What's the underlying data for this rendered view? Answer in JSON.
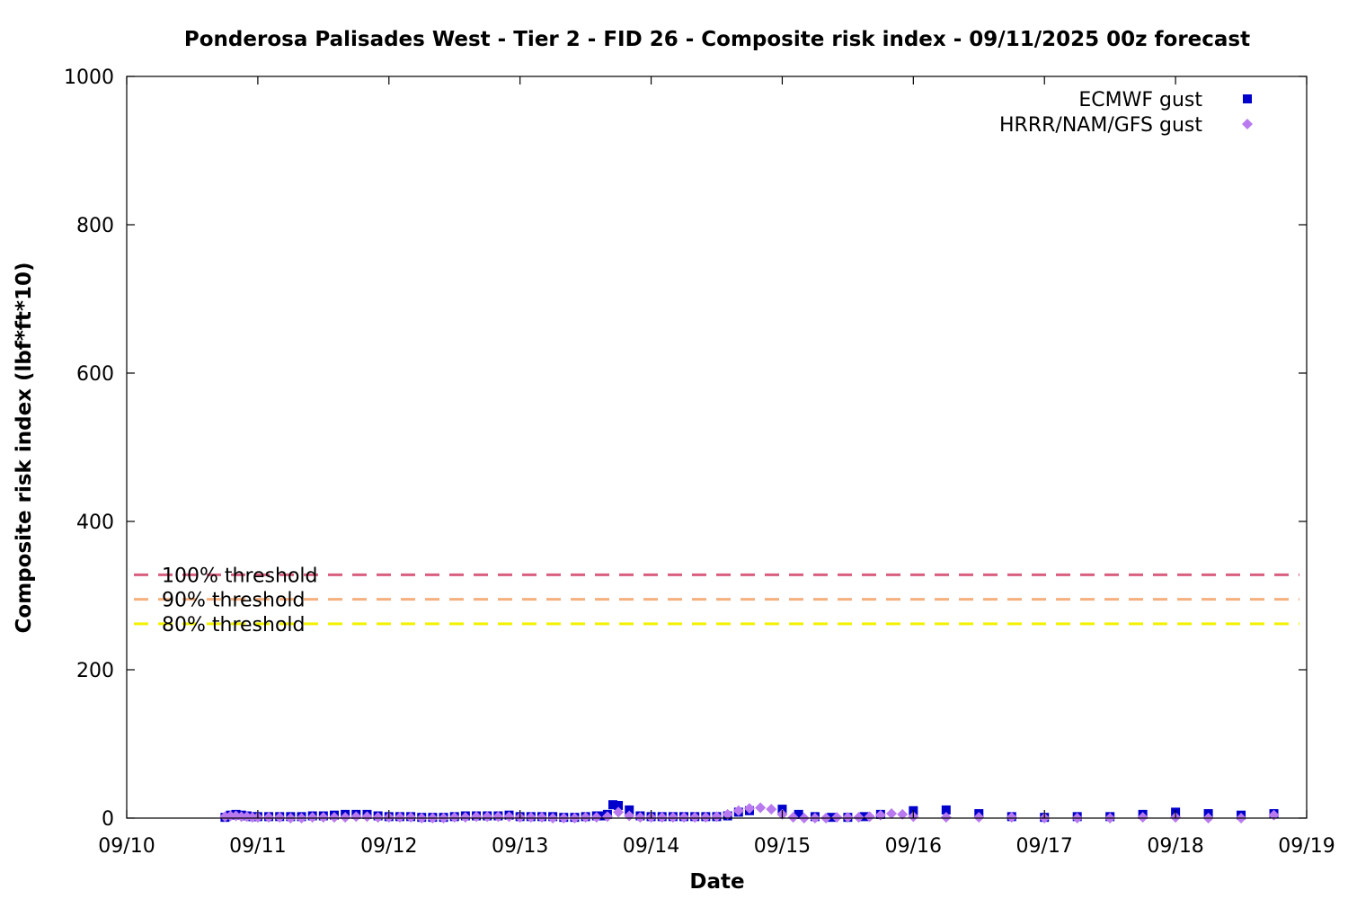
{
  "chart_data": {
    "type": "scatter",
    "title": "Ponderosa Palisades West - Tier 2 - FID 26 - Composite risk index - 09/11/2025 00z forecast",
    "xlabel": "Date",
    "ylabel": "Composite risk index (lbf*ft*10)",
    "x_start": "09/10",
    "x_end": "09/19",
    "xlim": [
      "09/10",
      "09/19"
    ],
    "ylim": [
      0,
      1000
    ],
    "grid": false,
    "legend_position": "top-right",
    "x_ticks": [
      "09/10",
      "09/11",
      "09/12",
      "09/13",
      "09/14",
      "09/15",
      "09/16",
      "09/17",
      "09/18",
      "09/19"
    ],
    "y_ticks": [
      "0",
      "200",
      "400",
      "600",
      "800",
      "1000"
    ],
    "thresholds": [
      {
        "label": "100% threshold",
        "value": 328,
        "color": "#d95f7f"
      },
      {
        "label": "90% threshold",
        "value": 295,
        "color": "#f5b07f"
      },
      {
        "label": "80% threshold",
        "value": 262,
        "color": "#f2f200"
      }
    ],
    "series": [
      {
        "name": "ECMWF gust",
        "color": "#0000cc",
        "marker": "square",
        "x": [
          "09/10 18:00",
          "09/10 19:00",
          "09/10 20:00",
          "09/10 21:00",
          "09/10 22:00",
          "09/10 23:00",
          "09/11 00:00",
          "09/11 02:00",
          "09/11 04:00",
          "09/11 06:00",
          "09/11 08:00",
          "09/11 10:00",
          "09/11 12:00",
          "09/11 14:00",
          "09/11 16:00",
          "09/11 18:00",
          "09/11 20:00",
          "09/11 22:00",
          "09/12 00:00",
          "09/12 02:00",
          "09/12 04:00",
          "09/12 06:00",
          "09/12 08:00",
          "09/12 10:00",
          "09/12 12:00",
          "09/12 14:00",
          "09/12 16:00",
          "09/12 18:00",
          "09/12 20:00",
          "09/12 22:00",
          "09/13 00:00",
          "09/13 02:00",
          "09/13 04:00",
          "09/13 06:00",
          "09/13 08:00",
          "09/13 10:00",
          "09/13 12:00",
          "09/13 14:00",
          "09/13 15:00",
          "09/13 16:00",
          "09/13 17:00",
          "09/13 18:00",
          "09/13 20:00",
          "09/13 22:00",
          "09/14 00:00",
          "09/14 02:00",
          "09/14 04:00",
          "09/14 06:00",
          "09/14 08:00",
          "09/14 10:00",
          "09/14 12:00",
          "09/14 14:00",
          "09/14 16:00",
          "09/14 18:00",
          "09/15 00:00",
          "09/15 03:00",
          "09/15 06:00",
          "09/15 09:00",
          "09/15 12:00",
          "09/15 15:00",
          "09/15 18:00",
          "09/16 00:00",
          "09/16 06:00",
          "09/16 12:00",
          "09/16 18:00",
          "09/17 00:00",
          "09/17 06:00",
          "09/17 12:00",
          "09/17 18:00",
          "09/18 00:00",
          "09/18 06:00",
          "09/18 12:00",
          "09/18 18:00"
        ],
        "values": [
          1,
          4,
          5,
          4,
          3,
          2,
          2,
          2,
          2,
          2,
          2,
          3,
          3,
          4,
          5,
          5,
          5,
          3,
          2,
          2,
          2,
          1,
          1,
          1,
          2,
          3,
          3,
          3,
          3,
          4,
          2,
          2,
          2,
          2,
          1,
          1,
          2,
          3,
          3,
          5,
          18,
          17,
          11,
          3,
          2,
          2,
          2,
          2,
          2,
          2,
          2,
          3,
          8,
          10,
          12,
          5,
          2,
          1,
          1,
          2,
          5,
          10,
          11,
          6,
          2,
          1,
          2,
          2,
          5,
          8,
          6,
          4,
          6
        ]
      },
      {
        "name": "HRRR/NAM/GFS gust",
        "color": "#b87aee",
        "marker": "diamond",
        "x": [
          "09/10 18:00",
          "09/10 19:00",
          "09/10 20:00",
          "09/10 21:00",
          "09/10 22:00",
          "09/10 23:00",
          "09/11 00:00",
          "09/11 02:00",
          "09/11 04:00",
          "09/11 06:00",
          "09/11 08:00",
          "09/11 10:00",
          "09/11 12:00",
          "09/11 14:00",
          "09/11 16:00",
          "09/11 18:00",
          "09/11 20:00",
          "09/11 22:00",
          "09/12 00:00",
          "09/12 02:00",
          "09/12 04:00",
          "09/12 06:00",
          "09/12 08:00",
          "09/12 10:00",
          "09/12 12:00",
          "09/12 14:00",
          "09/12 16:00",
          "09/12 18:00",
          "09/12 20:00",
          "09/12 22:00",
          "09/13 00:00",
          "09/13 02:00",
          "09/13 04:00",
          "09/13 06:00",
          "09/13 08:00",
          "09/13 10:00",
          "09/13 12:00",
          "09/13 14:00",
          "09/13 16:00",
          "09/13 18:00",
          "09/13 20:00",
          "09/13 22:00",
          "09/14 00:00",
          "09/14 02:00",
          "09/14 04:00",
          "09/14 06:00",
          "09/14 08:00",
          "09/14 10:00",
          "09/14 12:00",
          "09/14 14:00",
          "09/14 16:00",
          "09/14 18:00",
          "09/14 20:00",
          "09/14 22:00",
          "09/15 00:00",
          "09/15 02:00",
          "09/15 04:00",
          "09/15 06:00",
          "09/15 08:00",
          "09/15 10:00",
          "09/15 12:00",
          "09/15 14:00",
          "09/15 16:00",
          "09/15 18:00",
          "09/15 20:00",
          "09/15 22:00",
          "09/16 00:00",
          "09/16 06:00",
          "09/16 12:00",
          "09/16 18:00",
          "09/17 00:00",
          "09/17 06:00",
          "09/17 12:00",
          "09/17 18:00",
          "09/18 00:00",
          "09/18 06:00",
          "09/18 12:00",
          "09/18 18:00"
        ],
        "values": [
          2,
          3,
          3,
          2,
          2,
          1,
          1,
          1,
          1,
          0,
          0,
          1,
          1,
          1,
          1,
          2,
          2,
          1,
          1,
          1,
          1,
          0,
          0,
          0,
          1,
          1,
          2,
          2,
          2,
          2,
          1,
          1,
          1,
          0,
          0,
          0,
          1,
          1,
          2,
          8,
          3,
          1,
          1,
          1,
          1,
          1,
          1,
          1,
          2,
          5,
          10,
          13,
          14,
          12,
          5,
          1,
          0,
          0,
          0,
          1,
          1,
          1,
          2,
          4,
          6,
          5,
          2,
          1,
          1,
          1,
          0,
          0,
          0,
          1,
          1,
          0,
          0,
          4
        ]
      }
    ]
  }
}
